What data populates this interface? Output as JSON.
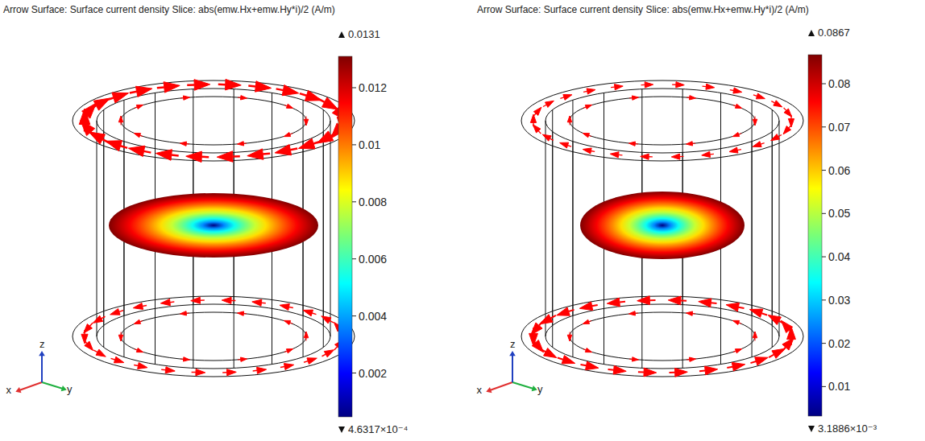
{
  "chart_data": [
    {
      "type": "slice",
      "title": "Arrow Surface: Surface current density  Slice: abs(emw.Hx+emw.Hy*i)/2 (A/m)",
      "colorbar": {
        "max": 0.0131,
        "min": {
          "value": 0.00046317,
          "label": "4.6317×10⁻⁴"
        },
        "ticks": [
          0.002,
          0.004,
          0.006,
          0.008,
          0.01,
          0.012
        ]
      },
      "axes": [
        "x",
        "y",
        "z"
      ],
      "color": "#ff0000"
    },
    {
      "type": "slice",
      "title": "Arrow Surface: Surface current density  Slice: abs(emw.Hx+emw.Hy*i)/2 (A/m)",
      "colorbar": {
        "max": 0.0867,
        "min": {
          "value": 0.0031886,
          "label": "3.1886×10⁻³"
        },
        "ticks": [
          0.01,
          0.02,
          0.03,
          0.04,
          0.05,
          0.06,
          0.07,
          0.08
        ]
      },
      "axes": [
        "x",
        "y",
        "z"
      ],
      "color": "#ff0000"
    }
  ]
}
